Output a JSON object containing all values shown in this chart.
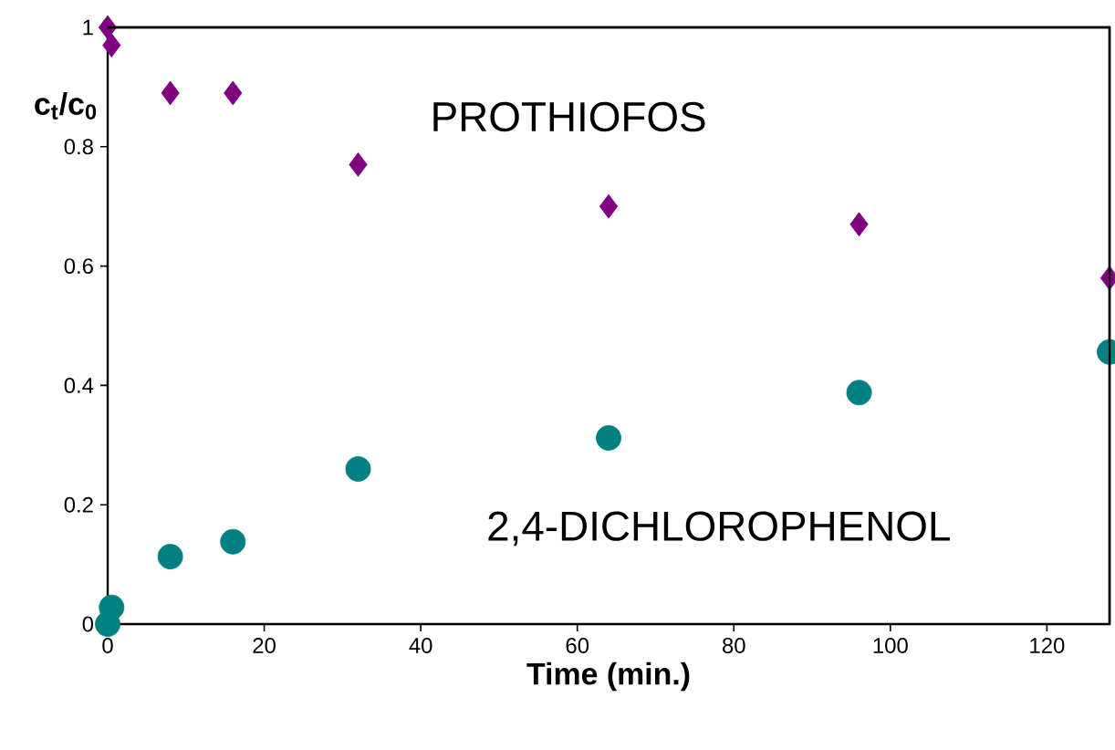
{
  "chart_data": {
    "type": "scatter",
    "xlabel": "Time (min.)",
    "ylabel": "c$_{t}$/c$_{0}$",
    "xlim": [
      0,
      128
    ],
    "ylim": [
      0,
      1
    ],
    "xticks": [
      0,
      20,
      40,
      60,
      80,
      100,
      120
    ],
    "yticks": [
      0,
      0.2,
      0.4,
      0.6,
      0.8,
      1
    ],
    "grid": false,
    "legend": false,
    "series": [
      {
        "name": "PROTHIOFOS",
        "color": "#800080",
        "marker": "diamond",
        "x": [
          0,
          0.5,
          8,
          16,
          32,
          64,
          96,
          128
        ],
        "values": [
          1.0,
          0.97,
          0.89,
          0.89,
          0.77,
          0.7,
          0.67,
          0.58
        ]
      },
      {
        "name": "2,4-DICHLOROPHENOL",
        "color": "#008080",
        "marker": "circle",
        "x": [
          0,
          0.5,
          8,
          16,
          32,
          64,
          96,
          128
        ],
        "values": [
          0.0,
          0.028,
          0.113,
          0.138,
          0.26,
          0.312,
          0.388,
          0.456
        ]
      }
    ]
  }
}
